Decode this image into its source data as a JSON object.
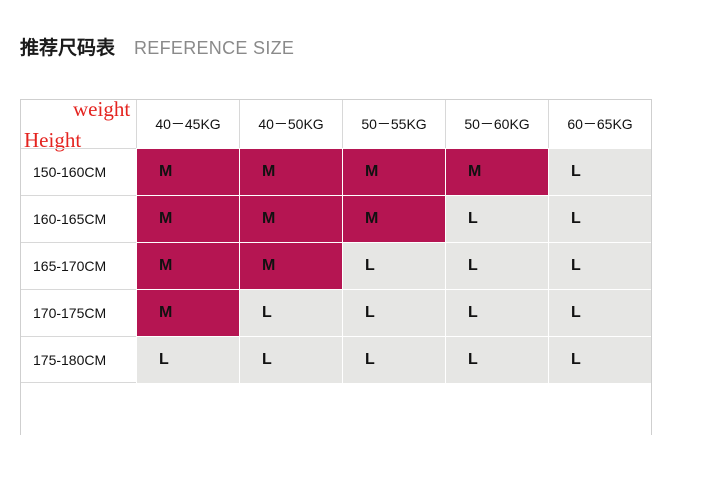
{
  "header": {
    "title_cn": "推荐尺码表",
    "title_en": "REFERENCE SIZE"
  },
  "table": {
    "corner_top_label": "weight",
    "corner_left_label": "Height",
    "columns": [
      "40－45KG",
      "40－50KG",
      "50－55KG",
      "50－60KG",
      "60－65KG"
    ],
    "rows": [
      {
        "height": "150-160CM",
        "sizes": [
          "M",
          "M",
          "M",
          "M",
          "L"
        ]
      },
      {
        "height": "160-165CM",
        "sizes": [
          "M",
          "M",
          "M",
          "L",
          "L"
        ]
      },
      {
        "height": "165-170CM",
        "sizes": [
          "M",
          "M",
          "L",
          "L",
          "L"
        ]
      },
      {
        "height": "170-175CM",
        "sizes": [
          "M",
          "L",
          "L",
          "L",
          "L"
        ]
      },
      {
        "height": "175-180CM",
        "sizes": [
          "L",
          "L",
          "L",
          "L",
          "L"
        ]
      }
    ]
  },
  "colors": {
    "size_m_bg": "#b51552",
    "size_l_bg": "#e6e6e4",
    "annotation": "#e4231f"
  }
}
